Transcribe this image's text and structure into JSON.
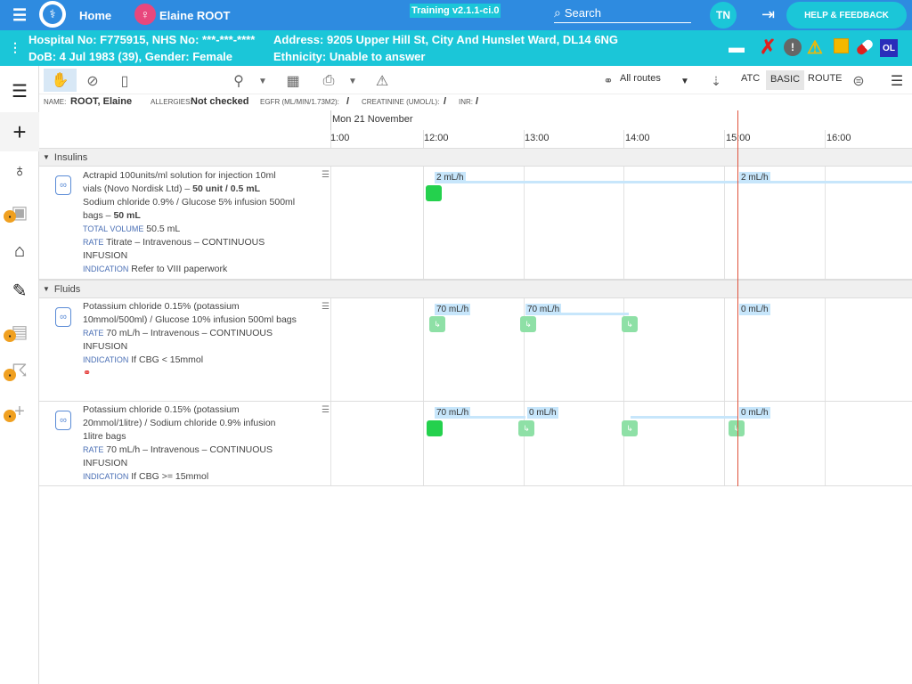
{
  "topbar": {
    "home_label": "Home",
    "patient_name": "Elaine ROOT",
    "training_label": "Training v2.1.1-ci.0",
    "search_label": "Search",
    "user_initials": "TN",
    "help_label": "HELP & FEEDBACK"
  },
  "patient": {
    "hospital_line": "Hospital No: F775915, NHS No: ***-***-****",
    "dob_line": "DoB: 4 Jul 1983 (39), Gender: Female",
    "address_line": "Address: 9205 Upper Hill St, City And Hunslet Ward, DL14 6NG",
    "ethnicity_line": "Ethnicity: Unable to answer",
    "badge_label": "OL"
  },
  "toolbar": {
    "routes_label": "All routes",
    "atc_label": "ATC",
    "basic_label": "BASIC",
    "route_label": "ROUTE"
  },
  "infobar": {
    "name_label": "NAME:",
    "name_value": "ROOT, Elaine",
    "allergies_label": "ALLERGIES:",
    "allergies_value": "Not checked",
    "egfr_label": "EGFR (ML/MIN/1.73M2):",
    "egfr_value": "/",
    "creatinine_label": "CREATININE (UMOL/L):",
    "creatinine_value": "/",
    "inr_label": "INR:",
    "inr_value": "/"
  },
  "timeline": {
    "date_label": "Mon 21 November",
    "hours": [
      "1:00",
      "12:00",
      "13:00",
      "14:00",
      "15:00",
      "16:00"
    ]
  },
  "groups": [
    {
      "label": "Insulins"
    },
    {
      "label": "Fluids"
    }
  ],
  "rows": [
    {
      "line1": "Actrapid 100units/ml solution for injection 10ml vials (Novo Nordisk Ltd) –",
      "line1_bold": "50 unit / 0.5 mL",
      "line2": "Sodium chloride 0.9% / Glucose 5% infusion 500ml bags –",
      "line2_bold": "50 mL",
      "total_label": "TOTAL VOLUME",
      "total_value": "50.5 mL",
      "rate_label": "RATE",
      "rate_value": "Titrate – Intravenous – CONTINUOUS INFUSION",
      "indication_label": "INDICATION",
      "indication_value": "Refer to VIII paperwork",
      "rates": [
        "2 mL/h",
        "2 mL/h"
      ]
    },
    {
      "line1": "Potassium chloride 0.15% (potassium 10mmol/500ml) / Glucose 10% infusion 500ml bags",
      "rate_label": "RATE",
      "rate_value": "70 mL/h – Intravenous – CONTINUOUS INFUSION",
      "indication_label": "INDICATION",
      "indication_value": "If CBG < 15mmol",
      "rates": [
        "70 mL/h",
        "70 mL/h",
        "0 mL/h"
      ]
    },
    {
      "line1": "Potassium chloride 0.15% (potassium 20mmol/1litre) / Sodium chloride 0.9% infusion 1litre bags",
      "rate_label": "RATE",
      "rate_value": "70 mL/h – Intravenous – CONTINUOUS INFUSION",
      "indication_label": "INDICATION",
      "indication_value": "If CBG >= 15mmol",
      "rates": [
        "70 mL/h",
        "0 mL/h",
        "0 mL/h"
      ]
    }
  ],
  "colors": {
    "topbar": "#2e8be0",
    "patientbar": "#1bc6d8",
    "now_line": "#e0533d",
    "start_marker": "#24d14d",
    "change_marker": "#8ee0a6"
  }
}
